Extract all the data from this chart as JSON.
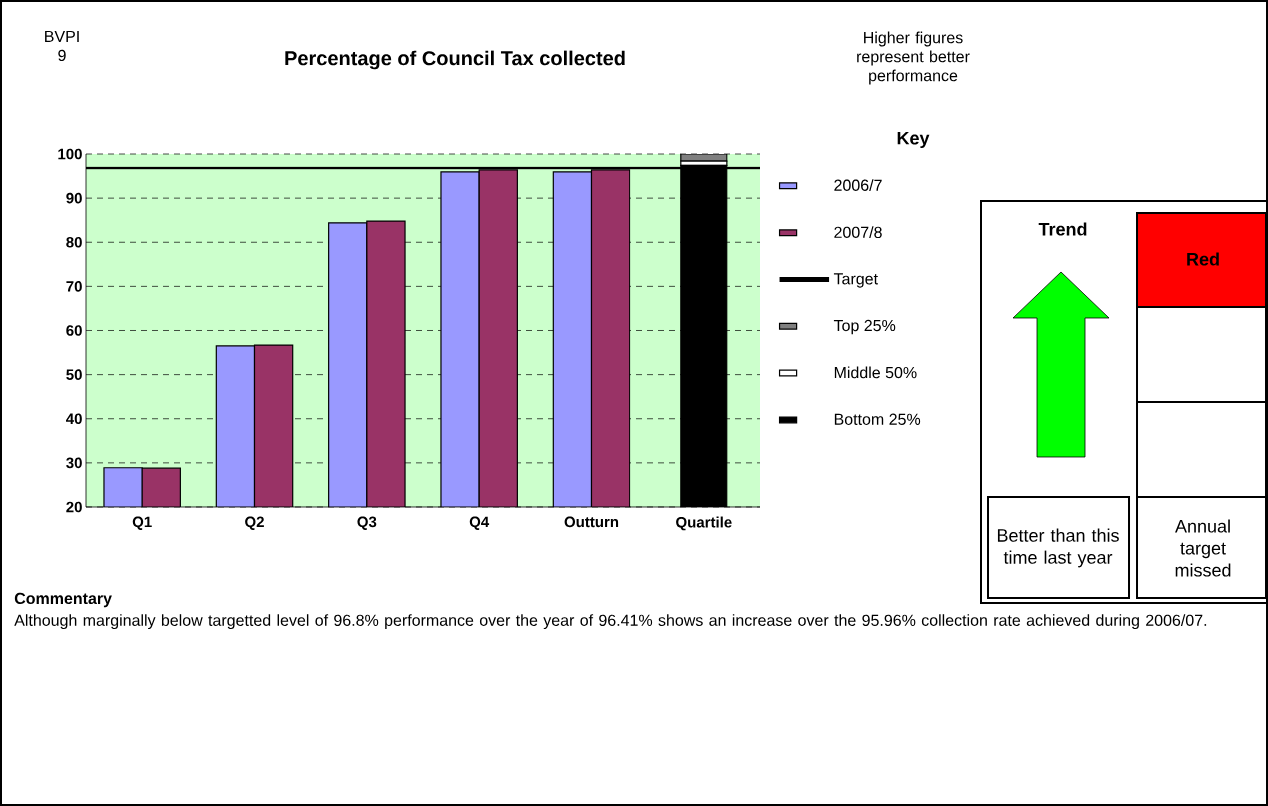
{
  "chart_data": [
    {
      "type": "bar",
      "title": "Percentage of Council Tax collected",
      "categories": [
        "Q1",
        "Q2",
        "Q3",
        "Q4",
        "Outturn",
        "Quartile"
      ],
      "series": [
        {
          "name": "2006/7",
          "color": "#9999ff",
          "values": [
            28.9,
            56.5,
            84.4,
            95.96,
            95.96,
            null
          ]
        },
        {
          "name": "2007/8",
          "color": "#993366",
          "values": [
            28.8,
            56.7,
            84.8,
            96.41,
            96.41,
            null
          ]
        },
        {
          "name": "Top 25%",
          "color": "#808080",
          "values": [
            null,
            null,
            null,
            null,
            null,
            1.6
          ],
          "base": [
            null,
            null,
            null,
            null,
            null,
            98.4
          ]
        },
        {
          "name": "Middle 50%",
          "color": "#ffffff",
          "values": [
            null,
            null,
            null,
            null,
            null,
            1.0
          ],
          "base": [
            null,
            null,
            null,
            null,
            null,
            97.4
          ]
        },
        {
          "name": "Bottom 25%",
          "color": "#000000",
          "values": [
            null,
            null,
            null,
            null,
            null,
            97.4
          ]
        }
      ],
      "ylim": [
        20,
        100
      ],
      "yticks": [
        20,
        30,
        40,
        50,
        60,
        70,
        80,
        90,
        100
      ],
      "grid": "y",
      "legend": "right",
      "legend_title": "Key",
      "ref_lines": [
        {
          "axis": "y",
          "value": 96.8,
          "label": "Target",
          "color": "#000000"
        }
      ],
      "annotations": [
        "BVPI 9",
        "Higher figures represent better performance",
        "Commentary",
        "Although marginally below targetted level of 96.8% performance over the year of 96.41% shows an increase over the 95.96% collection rate achieved during 2006/07."
      ]
    },
    {
      "type": "other",
      "annotations": [
        "Trend",
        "Red",
        "Better than this time last year",
        "Annual target missed"
      ]
    }
  ]
}
